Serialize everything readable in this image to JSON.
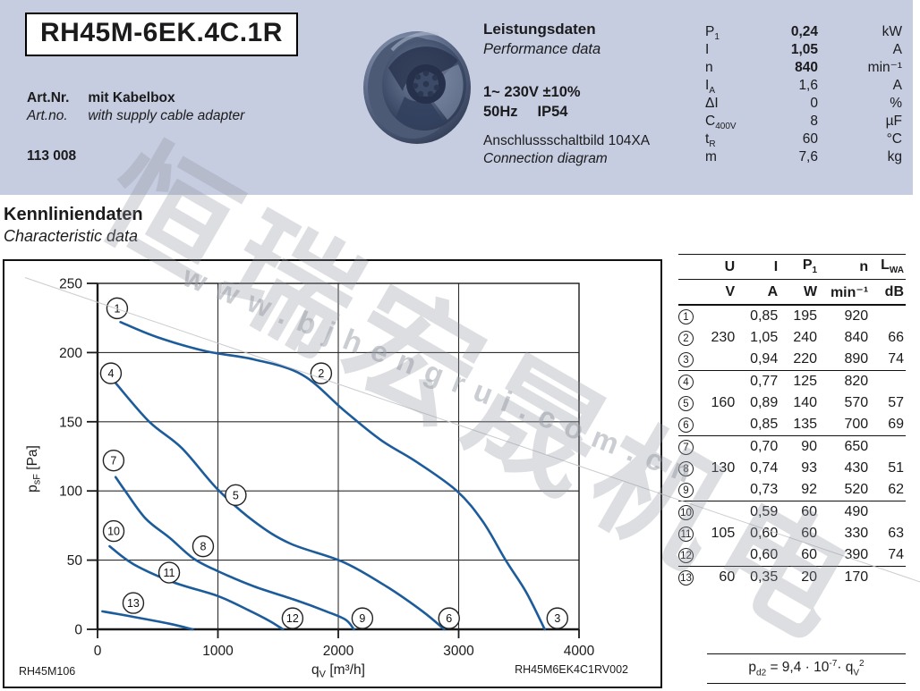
{
  "colors": {
    "band": "#c6cde0",
    "curve": "#1d5c9b",
    "watermark": "#979ca4"
  },
  "header": {
    "model": "RH45M-6EK.4C.1R",
    "art_label_de": "Art.Nr.",
    "art_desc_de": "mit Kabelbox",
    "art_label_en": "Art.no.",
    "art_desc_en": "with supply cable adapter",
    "art_number": "113 008",
    "perf_title_de": "Leistungsdaten",
    "perf_title_en": "Performance data",
    "voltage_line": "1~ 230V ±10%",
    "freq": "50Hz",
    "ip": "IP54",
    "connection_de": "Anschlussschaltbild 104XA",
    "connection_en": "Connection diagram",
    "specs": [
      {
        "sym": "P",
        "sub": "1",
        "value": "0,24",
        "unit": "kW",
        "bold": true
      },
      {
        "sym": "I",
        "sub": "",
        "value": "1,05",
        "unit": "A",
        "bold": true
      },
      {
        "sym": "n",
        "sub": "",
        "value": "840",
        "unit": "min⁻¹",
        "bold": true
      },
      {
        "sym": "I",
        "sub": "A",
        "value": "1,6",
        "unit": "A",
        "bold": false
      },
      {
        "sym": "ΔI",
        "sub": "",
        "value": "0",
        "unit": "%",
        "bold": false
      },
      {
        "sym": "C",
        "sub": "400V",
        "value": "8",
        "unit": "µF",
        "bold": false
      },
      {
        "sym": "t",
        "sub": "R",
        "value": "60",
        "unit": "°C",
        "bold": false
      },
      {
        "sym": "m",
        "sub": "",
        "value": "7,6",
        "unit": "kg",
        "bold": false
      }
    ]
  },
  "section": {
    "title_de": "Kennliniendaten",
    "title_en": "Characteristic data"
  },
  "chart_data": {
    "type": "line",
    "title": "Kennliniendaten / Characteristic data",
    "xlabel": {
      "main": "q",
      "sub": "V",
      "rest": " [m³/h]"
    },
    "ylabel": {
      "main": "p",
      "sub": "sF",
      "rest": " [Pa]"
    },
    "xlim": [
      0,
      4000
    ],
    "ylim": [
      0,
      250
    ],
    "xticks": [
      0,
      1000,
      2000,
      3000,
      4000
    ],
    "yticks": [
      0,
      50,
      100,
      150,
      200,
      250
    ],
    "grid": true,
    "legend_position": "none",
    "series": [
      {
        "name": "230 V (points 1-2-3)",
        "points": [
          [
            190,
            222
          ],
          [
            500,
            211
          ],
          [
            900,
            201
          ],
          [
            1300,
            195
          ],
          [
            1700,
            184
          ],
          [
            2050,
            158
          ],
          [
            2350,
            137
          ],
          [
            2650,
            121
          ],
          [
            2985,
            100
          ],
          [
            3200,
            78
          ],
          [
            3390,
            50
          ],
          [
            3560,
            27
          ],
          [
            3715,
            0
          ]
        ]
      },
      {
        "name": "160 V (points 4-5-6)",
        "points": [
          [
            150,
            178
          ],
          [
            430,
            150
          ],
          [
            700,
            131
          ],
          [
            1000,
            101
          ],
          [
            1300,
            78
          ],
          [
            1600,
            62
          ],
          [
            2030,
            49
          ],
          [
            2400,
            31
          ],
          [
            2700,
            13
          ],
          [
            2880,
            0
          ]
        ]
      },
      {
        "name": "130 V (points 7-8-9)",
        "points": [
          [
            150,
            110
          ],
          [
            230,
            100
          ],
          [
            400,
            80
          ],
          [
            600,
            66
          ],
          [
            800,
            51
          ],
          [
            1000,
            42
          ],
          [
            1300,
            31
          ],
          [
            1650,
            21
          ],
          [
            1900,
            13
          ],
          [
            2060,
            7
          ],
          [
            2130,
            0
          ]
        ]
      },
      {
        "name": "105 V (points 10-11-12)",
        "points": [
          [
            100,
            60
          ],
          [
            300,
            47
          ],
          [
            630,
            34
          ],
          [
            1000,
            24
          ],
          [
            1250,
            14
          ],
          [
            1430,
            6
          ],
          [
            1540,
            0
          ]
        ]
      },
      {
        "name": "60 V (point 13)",
        "points": [
          [
            40,
            13
          ],
          [
            300,
            9
          ],
          [
            600,
            4
          ],
          [
            790,
            0
          ]
        ]
      }
    ],
    "point_labels": [
      {
        "n": "1",
        "q": 163,
        "p": 232
      },
      {
        "n": "2",
        "q": 1858,
        "p": 185
      },
      {
        "n": "3",
        "q": 3820,
        "p": 8
      },
      {
        "n": "4",
        "q": 111,
        "p": 185
      },
      {
        "n": "5",
        "q": 1148,
        "p": 97
      },
      {
        "n": "6",
        "q": 2920,
        "p": 8
      },
      {
        "n": "7",
        "q": 133,
        "p": 122
      },
      {
        "n": "8",
        "q": 877,
        "p": 60
      },
      {
        "n": "9",
        "q": 2200,
        "p": 8
      },
      {
        "n": "10",
        "q": 134,
        "p": 71
      },
      {
        "n": "11",
        "q": 595,
        "p": 41
      },
      {
        "n": "12",
        "q": 1620,
        "p": 8
      },
      {
        "n": "13",
        "q": 297,
        "p": 19
      }
    ],
    "footer_left": "RH45M106",
    "footer_right": "RH45M6EK4C1RV002"
  },
  "table": {
    "headers": [
      {
        "t": "U",
        "sub": ""
      },
      {
        "t": "I",
        "sub": ""
      },
      {
        "t": "P",
        "sub": "1"
      },
      {
        "t": "n",
        "sub": ""
      },
      {
        "t": "L",
        "sub": "WA"
      }
    ],
    "units": [
      "V",
      "A",
      "W",
      "min⁻¹",
      "dB"
    ],
    "rows": [
      [
        "1",
        "",
        "0,85",
        "195",
        "920",
        ""
      ],
      [
        "2",
        "230",
        "1,05",
        "240",
        "840",
        "66"
      ],
      [
        "3",
        "",
        "0,94",
        "220",
        "890",
        "74"
      ],
      [
        "4",
        "",
        "0,77",
        "125",
        "820",
        ""
      ],
      [
        "5",
        "160",
        "0,89",
        "140",
        "570",
        "57"
      ],
      [
        "6",
        "",
        "0,85",
        "135",
        "700",
        "69"
      ],
      [
        "7",
        "",
        "0,70",
        "90",
        "650",
        ""
      ],
      [
        "8",
        "130",
        "0,74",
        "93",
        "430",
        "51"
      ],
      [
        "9",
        "",
        "0,73",
        "92",
        "520",
        "62"
      ],
      [
        "10",
        "",
        "0,59",
        "60",
        "490",
        ""
      ],
      [
        "11",
        "105",
        "0,60",
        "60",
        "330",
        "63"
      ],
      [
        "12",
        "",
        "0,60",
        "60",
        "390",
        "74"
      ],
      [
        "13",
        "60",
        "0,35",
        "20",
        "170",
        ""
      ]
    ],
    "group_start_rows": [
      4,
      7,
      10,
      13
    ]
  },
  "formula": {
    "var": "p",
    "var_sub": "d2",
    "equals": " = 9,4 · 10",
    "exponent": "-7",
    "times": "· q",
    "q_sub": "V",
    "q_exp": "2"
  },
  "watermark": {
    "cn_text": "恒瑞宏晟机电",
    "url_text": "www.bjhengrui.com.cn"
  }
}
